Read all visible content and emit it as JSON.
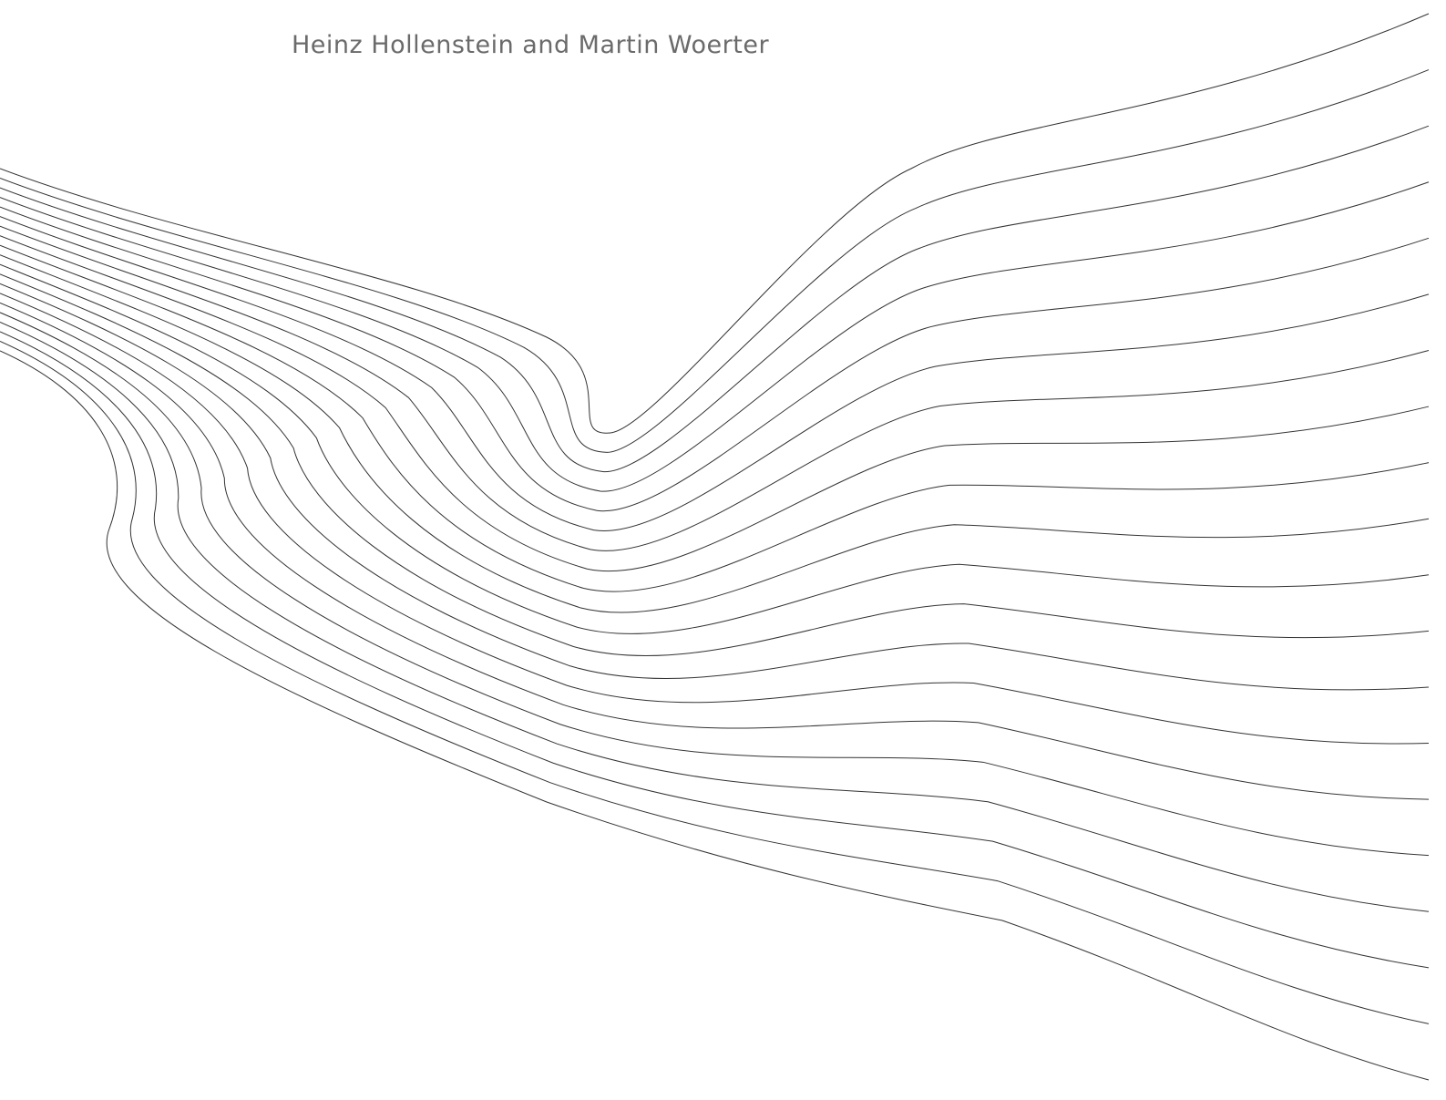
{
  "authors": "Heinz Hollenstein and Martin Woerter"
}
